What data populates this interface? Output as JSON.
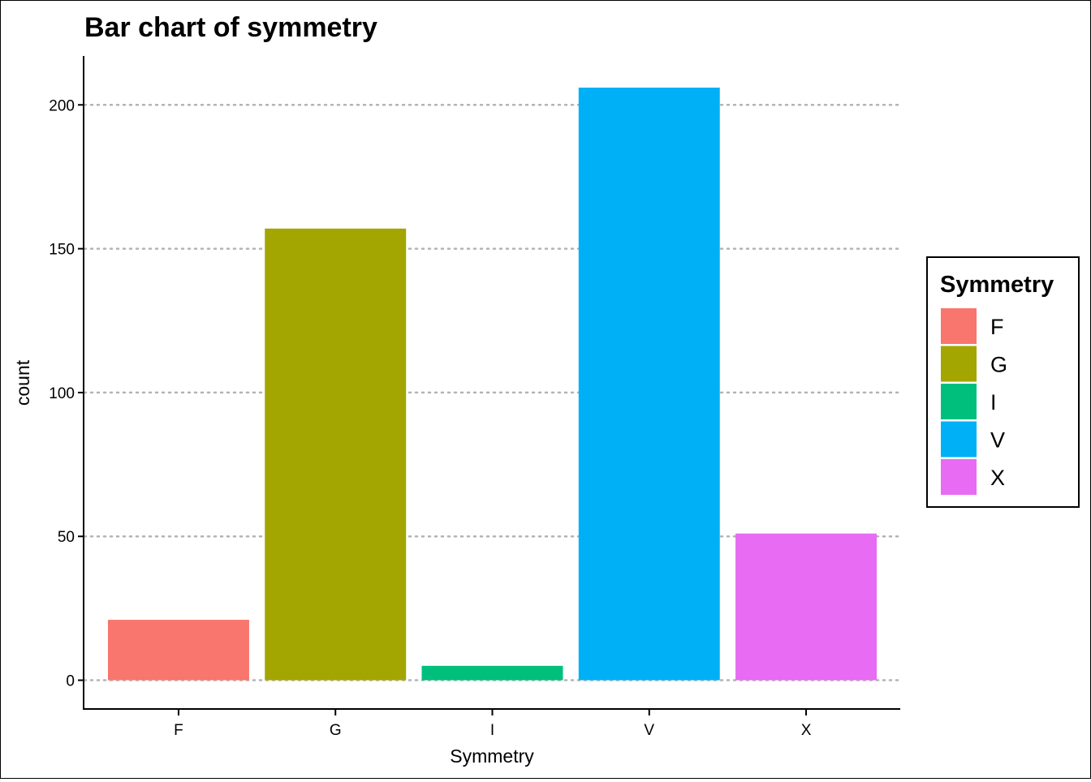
{
  "chart_data": {
    "type": "bar",
    "title": "Bar chart of symmetry",
    "xlabel": "Symmetry",
    "ylabel": "count",
    "categories": [
      "F",
      "G",
      "I",
      "V",
      "X"
    ],
    "values": [
      21,
      157,
      5,
      206,
      51
    ],
    "colors": [
      "#F8766D",
      "#A3A500",
      "#00BF7D",
      "#00B0F6",
      "#E76BF3"
    ],
    "ylim": [
      -10,
      217
    ],
    "yticks": [
      0,
      50,
      100,
      150,
      200
    ],
    "grid": "horizontal-dotted",
    "legend": {
      "title": "Symmetry",
      "position": "right",
      "entries": [
        "F",
        "G",
        "I",
        "V",
        "X"
      ]
    }
  }
}
